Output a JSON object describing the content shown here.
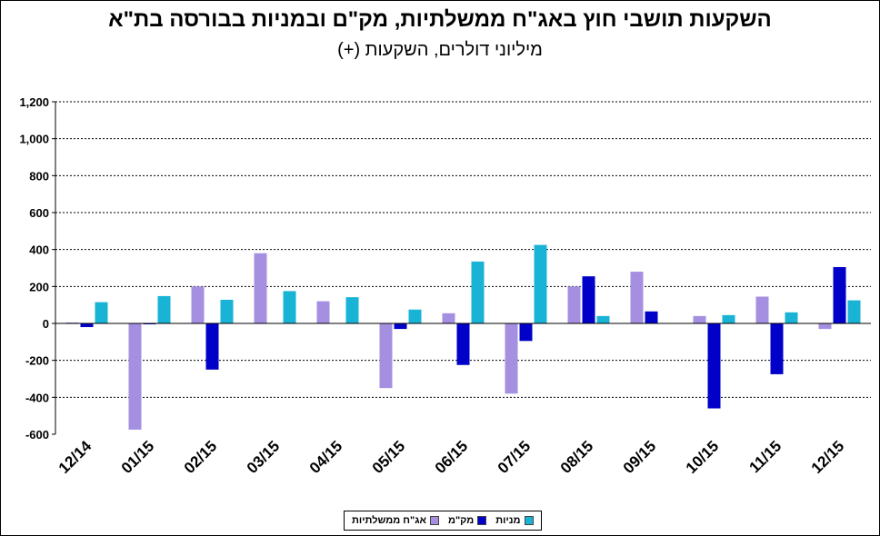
{
  "chart_data": {
    "type": "bar",
    "title": "השקעות תושבי חוץ באג\"ח ממשלתיות, מק\"ם ובמניות בבורסה בת\"א",
    "subtitle": "מיליוני דולרים, השקעות (+)",
    "categories": [
      "12/14",
      "01/15",
      "02/15",
      "03/15",
      "04/15",
      "05/15",
      "06/15",
      "07/15",
      "08/15",
      "09/15",
      "10/15",
      "11/15",
      "12/15"
    ],
    "series": [
      {
        "name": "אג\"ח ממשלתיות",
        "color": "#a58fe0",
        "values": [
          5,
          -575,
          200,
          380,
          120,
          -350,
          55,
          -380,
          200,
          280,
          40,
          145,
          -30
        ]
      },
      {
        "name": "מק\"מ",
        "color": "#0000c8",
        "values": [
          -20,
          -5,
          -250,
          0,
          0,
          -30,
          -225,
          -95,
          255,
          65,
          -460,
          -275,
          305
        ]
      },
      {
        "name": "מניות",
        "color": "#19b3d6",
        "values": [
          115,
          148,
          128,
          175,
          142,
          75,
          335,
          425,
          40,
          0,
          45,
          60,
          125
        ]
      }
    ],
    "ylim": [
      -600,
      1200
    ],
    "yticks": [
      -600,
      -400,
      -200,
      0,
      200,
      400,
      600,
      800,
      1000,
      1200
    ],
    "ytick_labels": [
      "-600",
      "-400",
      "-200",
      "0",
      "200",
      "400",
      "600",
      "800",
      "1,000",
      "1,200"
    ],
    "grid": true,
    "legend_position": "bottom"
  }
}
